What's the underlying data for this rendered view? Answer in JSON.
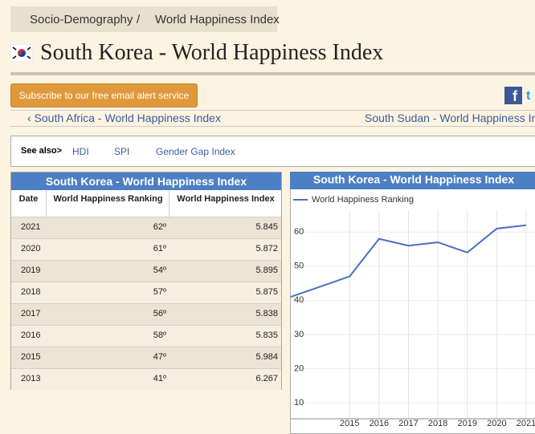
{
  "breadcrumb": [
    "Socio-Demography",
    "/",
    "World Happiness Index"
  ],
  "title": "South Korea - World Happiness Index",
  "subscribe": "Subscribe to our free email alert service",
  "nav": {
    "prev": "‹ South Africa - World Happiness Index",
    "next": "South Sudan - World Happiness Index"
  },
  "see_also": {
    "label": "See also>",
    "links": [
      "HDI",
      "SPI",
      "Gender Gap Index"
    ]
  },
  "table": {
    "title": "South Korea - World Happiness Index",
    "columns": [
      "Date",
      "World Happiness Ranking",
      "World Happiness Index"
    ],
    "rows": [
      [
        "2021",
        "62º",
        "5.845"
      ],
      [
        "2020",
        "61º",
        "5.872"
      ],
      [
        "2019",
        "54º",
        "5.895"
      ],
      [
        "2018",
        "57º",
        "5.875"
      ],
      [
        "2017",
        "56º",
        "5.838"
      ],
      [
        "2016",
        "58º",
        "5.835"
      ],
      [
        "2015",
        "47º",
        "5.984"
      ],
      [
        "2013",
        "41º",
        "6.267"
      ]
    ]
  },
  "chart_data": {
    "type": "line",
    "title": "South Korea - World Happiness Index",
    "x": [
      2013,
      2015,
      2016,
      2017,
      2018,
      2019,
      2020,
      2021
    ],
    "series": [
      {
        "name": "World Happiness Ranking",
        "color": "#4a6fc0",
        "values": [
          41,
          47,
          58,
          56,
          57,
          54,
          61,
          62
        ]
      }
    ],
    "xlim": [
      2013,
      2021.3
    ],
    "xticks": [
      2015,
      2016,
      2017,
      2018,
      2019,
      2020,
      2021
    ],
    "ylim": [
      5.3,
      66.4
    ],
    "yticks": [
      10,
      20,
      30,
      40,
      50,
      60
    ],
    "grid": true
  }
}
